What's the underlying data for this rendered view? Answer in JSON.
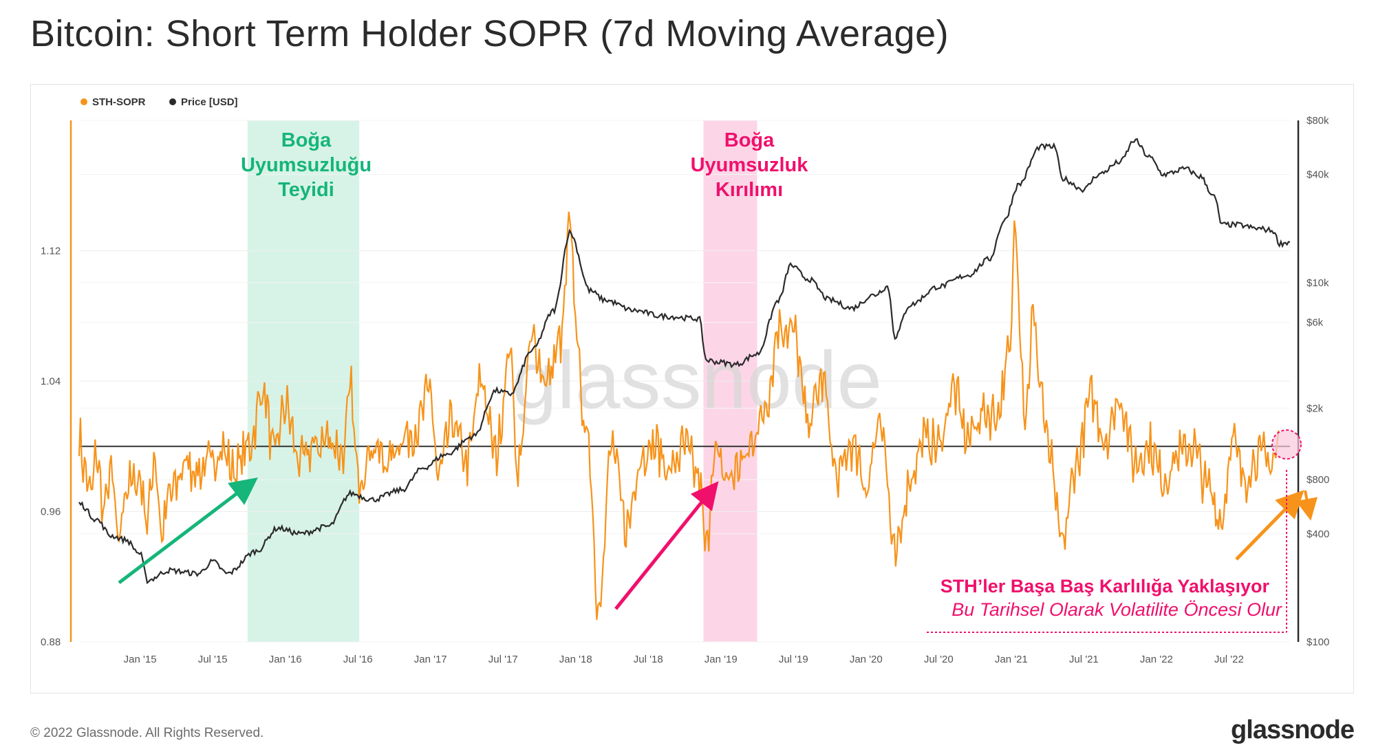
{
  "title": "Bitcoin: Short Term Holder SOPR (7d Moving Average)",
  "footer": {
    "copyright": "© 2022 Glassnode. All Rights Reserved.",
    "logo": "glassnode"
  },
  "watermark": "glassnode",
  "colors": {
    "sopr": "#f7931a",
    "price": "#2b2b2b",
    "green": "#16b57a",
    "pink": "#f0106c",
    "green_band": "#d7f3e7",
    "pink_band": "#fcd6e7"
  },
  "chart_data": {
    "type": "line",
    "title": "Bitcoin: Short Term Holder SOPR (7d Moving Average)",
    "legend": [
      {
        "name": "STH-SOPR",
        "color": "#f7931a"
      },
      {
        "name": "Price [USD]",
        "color": "#2b2b2b"
      }
    ],
    "x_range": [
      2014.58,
      2022.92
    ],
    "x_ticks": [
      {
        "label": "Jan '15",
        "t": 2015.0
      },
      {
        "label": "Jul '15",
        "t": 2015.5
      },
      {
        "label": "Jan '16",
        "t": 2016.0
      },
      {
        "label": "Jul '16",
        "t": 2016.5
      },
      {
        "label": "Jan '17",
        "t": 2017.0
      },
      {
        "label": "Jul '17",
        "t": 2017.5
      },
      {
        "label": "Jan '18",
        "t": 2018.0
      },
      {
        "label": "Jul '18",
        "t": 2018.5
      },
      {
        "label": "Jan '19",
        "t": 2019.0
      },
      {
        "label": "Jul '19",
        "t": 2019.5
      },
      {
        "label": "Jan '20",
        "t": 2020.0
      },
      {
        "label": "Jul '20",
        "t": 2020.5
      },
      {
        "label": "Jan '21",
        "t": 2021.0
      },
      {
        "label": "Jul '21",
        "t": 2021.5
      },
      {
        "label": "Jan '22",
        "t": 2022.0
      },
      {
        "label": "Jul '22",
        "t": 2022.5
      }
    ],
    "left_axis": {
      "ylim": [
        0.88,
        1.2
      ],
      "ticks": [
        {
          "label": "0.88",
          "v": 0.88
        },
        {
          "label": "0.96",
          "v": 0.96
        },
        {
          "label": "1.04",
          "v": 1.04
        },
        {
          "label": "1.12",
          "v": 1.12
        }
      ]
    },
    "right_axis": {
      "scale": "log",
      "ylim": [
        100,
        80000
      ],
      "ticks": [
        {
          "label": "$100",
          "v": 100
        },
        {
          "label": "$400",
          "v": 400
        },
        {
          "label": "$800",
          "v": 800
        },
        {
          "label": "$2k",
          "v": 2000
        },
        {
          "label": "$6k",
          "v": 6000
        },
        {
          "label": "$10k",
          "v": 10000
        },
        {
          "label": "$40k",
          "v": 40000
        },
        {
          "label": "$80k",
          "v": 80000
        }
      ]
    },
    "reference_line": 1.0,
    "sopr_anchors": [
      [
        2014.58,
        1.005
      ],
      [
        2014.62,
        0.985
      ],
      [
        2014.66,
        0.97
      ],
      [
        2014.7,
        0.995
      ],
      [
        2014.75,
        0.96
      ],
      [
        2014.8,
        0.985
      ],
      [
        2014.85,
        0.94
      ],
      [
        2014.9,
        0.975
      ],
      [
        2015.0,
        0.98
      ],
      [
        2015.05,
        0.955
      ],
      [
        2015.1,
        0.995
      ],
      [
        2015.15,
        0.945
      ],
      [
        2015.2,
        0.97
      ],
      [
        2015.25,
        0.975
      ],
      [
        2015.3,
        0.99
      ],
      [
        2015.4,
        0.985
      ],
      [
        2015.5,
        0.99
      ],
      [
        2015.55,
        1.0
      ],
      [
        2015.65,
        0.985
      ],
      [
        2015.75,
        1.0
      ],
      [
        2015.85,
        1.035
      ],
      [
        2015.92,
        0.995
      ],
      [
        2016.0,
        1.025
      ],
      [
        2016.1,
        0.99
      ],
      [
        2016.2,
        1.0
      ],
      [
        2016.3,
        1.005
      ],
      [
        2016.4,
        0.995
      ],
      [
        2016.45,
        1.035
      ],
      [
        2016.5,
        0.98
      ],
      [
        2016.6,
        1.0
      ],
      [
        2016.7,
        0.99
      ],
      [
        2016.8,
        1.005
      ],
      [
        2016.9,
        1.01
      ],
      [
        2017.0,
        1.035
      ],
      [
        2017.05,
        0.98
      ],
      [
        2017.15,
        1.015
      ],
      [
        2017.25,
        0.99
      ],
      [
        2017.35,
        1.04
      ],
      [
        2017.45,
        0.995
      ],
      [
        2017.55,
        1.06
      ],
      [
        2017.6,
        0.985
      ],
      [
        2017.7,
        1.065
      ],
      [
        2017.8,
        1.04
      ],
      [
        2017.9,
        1.065
      ],
      [
        2017.96,
        1.135
      ],
      [
        2018.0,
        1.08
      ],
      [
        2018.05,
        1.02
      ],
      [
        2018.1,
        0.99
      ],
      [
        2018.15,
        0.9
      ],
      [
        2018.25,
        1.0
      ],
      [
        2018.35,
        0.95
      ],
      [
        2018.45,
        0.995
      ],
      [
        2018.55,
        1.0
      ],
      [
        2018.65,
        0.985
      ],
      [
        2018.75,
        1.0
      ],
      [
        2018.85,
        0.98
      ],
      [
        2018.9,
        0.935
      ],
      [
        2018.95,
        0.995
      ],
      [
        2019.05,
        0.98
      ],
      [
        2019.15,
        0.99
      ],
      [
        2019.25,
        1.01
      ],
      [
        2019.32,
        1.03
      ],
      [
        2019.4,
        1.075
      ],
      [
        2019.5,
        1.07
      ],
      [
        2019.6,
        1.015
      ],
      [
        2019.7,
        1.04
      ],
      [
        2019.8,
        0.98
      ],
      [
        2019.9,
        1.0
      ],
      [
        2020.0,
        0.975
      ],
      [
        2020.1,
        1.02
      ],
      [
        2020.2,
        0.93
      ],
      [
        2020.3,
        0.98
      ],
      [
        2020.4,
        1.005
      ],
      [
        2020.5,
        1.0
      ],
      [
        2020.6,
        1.035
      ],
      [
        2020.7,
        1.005
      ],
      [
        2020.8,
        1.02
      ],
      [
        2020.9,
        1.02
      ],
      [
        2021.0,
        1.06
      ],
      [
        2021.02,
        1.14
      ],
      [
        2021.1,
        1.02
      ],
      [
        2021.15,
        1.08
      ],
      [
        2021.2,
        1.04
      ],
      [
        2021.25,
        1.0
      ],
      [
        2021.35,
        0.94
      ],
      [
        2021.45,
        0.99
      ],
      [
        2021.55,
        1.03
      ],
      [
        2021.65,
        1.005
      ],
      [
        2021.75,
        1.03
      ],
      [
        2021.85,
        0.99
      ],
      [
        2021.95,
        1.0
      ],
      [
        2022.05,
        0.98
      ],
      [
        2022.15,
        0.995
      ],
      [
        2022.25,
        1.0
      ],
      [
        2022.35,
        0.975
      ],
      [
        2022.45,
        0.955
      ],
      [
        2022.52,
        1.005
      ],
      [
        2022.6,
        0.98
      ],
      [
        2022.7,
        0.995
      ],
      [
        2022.8,
        0.99
      ],
      [
        2022.85,
        1.005
      ]
    ],
    "price_anchors": [
      [
        2014.58,
        590
      ],
      [
        2014.7,
        480
      ],
      [
        2014.8,
        390
      ],
      [
        2014.9,
        370
      ],
      [
        2015.0,
        310
      ],
      [
        2015.05,
        220
      ],
      [
        2015.2,
        250
      ],
      [
        2015.4,
        240
      ],
      [
        2015.5,
        280
      ],
      [
        2015.6,
        240
      ],
      [
        2015.8,
        320
      ],
      [
        2015.95,
        430
      ],
      [
        2016.1,
        400
      ],
      [
        2016.3,
        440
      ],
      [
        2016.45,
        670
      ],
      [
        2016.6,
        620
      ],
      [
        2016.8,
        700
      ],
      [
        2016.95,
        930
      ],
      [
        2017.1,
        1100
      ],
      [
        2017.3,
        1400
      ],
      [
        2017.45,
        2500
      ],
      [
        2017.55,
        2400
      ],
      [
        2017.7,
        4200
      ],
      [
        2017.85,
        7000
      ],
      [
        2017.96,
        19000
      ],
      [
        2018.1,
        9000
      ],
      [
        2018.2,
        8000
      ],
      [
        2018.4,
        7000
      ],
      [
        2018.6,
        6500
      ],
      [
        2018.85,
        6300
      ],
      [
        2018.9,
        3700
      ],
      [
        2019.0,
        3600
      ],
      [
        2019.1,
        3500
      ],
      [
        2019.25,
        4000
      ],
      [
        2019.4,
        8000
      ],
      [
        2019.48,
        12500
      ],
      [
        2019.6,
        10500
      ],
      [
        2019.75,
        8000
      ],
      [
        2019.9,
        7200
      ],
      [
        2020.05,
        8500
      ],
      [
        2020.15,
        9500
      ],
      [
        2020.2,
        5000
      ],
      [
        2020.3,
        7500
      ],
      [
        2020.5,
        9500
      ],
      [
        2020.7,
        11000
      ],
      [
        2020.85,
        13500
      ],
      [
        2020.95,
        22000
      ],
      [
        2021.05,
        35000
      ],
      [
        2021.2,
        57000
      ],
      [
        2021.3,
        57000
      ],
      [
        2021.35,
        38000
      ],
      [
        2021.5,
        33000
      ],
      [
        2021.6,
        40000
      ],
      [
        2021.75,
        47000
      ],
      [
        2021.85,
        62000
      ],
      [
        2021.95,
        50000
      ],
      [
        2022.05,
        40000
      ],
      [
        2022.2,
        43000
      ],
      [
        2022.3,
        39000
      ],
      [
        2022.4,
        30000
      ],
      [
        2022.45,
        21000
      ],
      [
        2022.55,
        21000
      ],
      [
        2022.7,
        20000
      ],
      [
        2022.8,
        19500
      ],
      [
        2022.85,
        16500
      ],
      [
        2022.92,
        16800
      ]
    ],
    "highlight_bands": [
      {
        "from": 2015.74,
        "to": 2016.51,
        "color": "#d7f3e7"
      },
      {
        "from": 2018.88,
        "to": 2019.25,
        "color": "#fcd6e7"
      }
    ],
    "annotations": {
      "green_label": [
        "Boğa",
        "Uyumsuzluğu",
        "Teyidi"
      ],
      "pink_label": [
        "Boğa",
        "Uyumsuzluk",
        "Kırılımı"
      ],
      "callout_title": "STH’ler Başa Baş Karlılığa Yaklaşıyor",
      "callout_subtitle": "Bu Tarihsel Olarak Volatilite Öncesi Olur"
    }
  }
}
